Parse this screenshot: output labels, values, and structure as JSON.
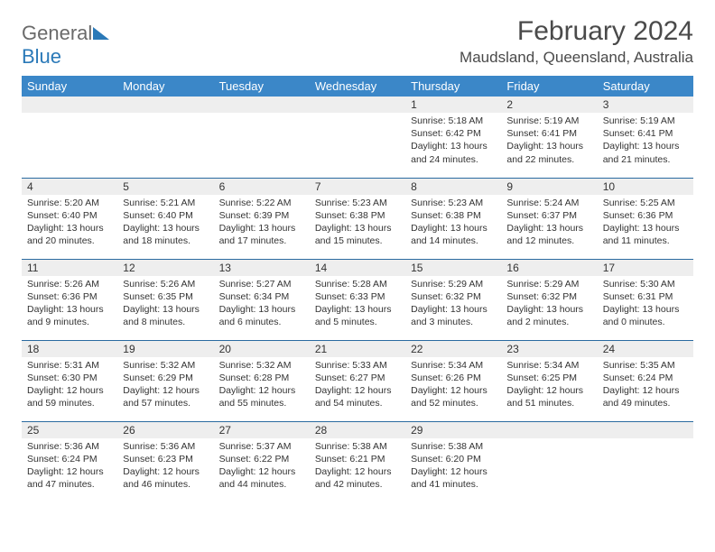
{
  "logo": {
    "text1": "General",
    "text2": "Blue"
  },
  "title": "February 2024",
  "location": "Maudsland, Queensland, Australia",
  "colors": {
    "header_bg": "#3b87c8",
    "row_divider": "#2a6aa0",
    "daynum_bg": "#eeeeee",
    "logo_gray": "#6a6a6a",
    "logo_blue": "#2a79b8"
  },
  "day_headers": [
    "Sunday",
    "Monday",
    "Tuesday",
    "Wednesday",
    "Thursday",
    "Friday",
    "Saturday"
  ],
  "weeks": [
    [
      {
        "day": "",
        "sunrise": "",
        "sunset": "",
        "daylight": ""
      },
      {
        "day": "",
        "sunrise": "",
        "sunset": "",
        "daylight": ""
      },
      {
        "day": "",
        "sunrise": "",
        "sunset": "",
        "daylight": ""
      },
      {
        "day": "",
        "sunrise": "",
        "sunset": "",
        "daylight": ""
      },
      {
        "day": "1",
        "sunrise": "Sunrise: 5:18 AM",
        "sunset": "Sunset: 6:42 PM",
        "daylight": "Daylight: 13 hours and 24 minutes."
      },
      {
        "day": "2",
        "sunrise": "Sunrise: 5:19 AM",
        "sunset": "Sunset: 6:41 PM",
        "daylight": "Daylight: 13 hours and 22 minutes."
      },
      {
        "day": "3",
        "sunrise": "Sunrise: 5:19 AM",
        "sunset": "Sunset: 6:41 PM",
        "daylight": "Daylight: 13 hours and 21 minutes."
      }
    ],
    [
      {
        "day": "4",
        "sunrise": "Sunrise: 5:20 AM",
        "sunset": "Sunset: 6:40 PM",
        "daylight": "Daylight: 13 hours and 20 minutes."
      },
      {
        "day": "5",
        "sunrise": "Sunrise: 5:21 AM",
        "sunset": "Sunset: 6:40 PM",
        "daylight": "Daylight: 13 hours and 18 minutes."
      },
      {
        "day": "6",
        "sunrise": "Sunrise: 5:22 AM",
        "sunset": "Sunset: 6:39 PM",
        "daylight": "Daylight: 13 hours and 17 minutes."
      },
      {
        "day": "7",
        "sunrise": "Sunrise: 5:23 AM",
        "sunset": "Sunset: 6:38 PM",
        "daylight": "Daylight: 13 hours and 15 minutes."
      },
      {
        "day": "8",
        "sunrise": "Sunrise: 5:23 AM",
        "sunset": "Sunset: 6:38 PM",
        "daylight": "Daylight: 13 hours and 14 minutes."
      },
      {
        "day": "9",
        "sunrise": "Sunrise: 5:24 AM",
        "sunset": "Sunset: 6:37 PM",
        "daylight": "Daylight: 13 hours and 12 minutes."
      },
      {
        "day": "10",
        "sunrise": "Sunrise: 5:25 AM",
        "sunset": "Sunset: 6:36 PM",
        "daylight": "Daylight: 13 hours and 11 minutes."
      }
    ],
    [
      {
        "day": "11",
        "sunrise": "Sunrise: 5:26 AM",
        "sunset": "Sunset: 6:36 PM",
        "daylight": "Daylight: 13 hours and 9 minutes."
      },
      {
        "day": "12",
        "sunrise": "Sunrise: 5:26 AM",
        "sunset": "Sunset: 6:35 PM",
        "daylight": "Daylight: 13 hours and 8 minutes."
      },
      {
        "day": "13",
        "sunrise": "Sunrise: 5:27 AM",
        "sunset": "Sunset: 6:34 PM",
        "daylight": "Daylight: 13 hours and 6 minutes."
      },
      {
        "day": "14",
        "sunrise": "Sunrise: 5:28 AM",
        "sunset": "Sunset: 6:33 PM",
        "daylight": "Daylight: 13 hours and 5 minutes."
      },
      {
        "day": "15",
        "sunrise": "Sunrise: 5:29 AM",
        "sunset": "Sunset: 6:32 PM",
        "daylight": "Daylight: 13 hours and 3 minutes."
      },
      {
        "day": "16",
        "sunrise": "Sunrise: 5:29 AM",
        "sunset": "Sunset: 6:32 PM",
        "daylight": "Daylight: 13 hours and 2 minutes."
      },
      {
        "day": "17",
        "sunrise": "Sunrise: 5:30 AM",
        "sunset": "Sunset: 6:31 PM",
        "daylight": "Daylight: 13 hours and 0 minutes."
      }
    ],
    [
      {
        "day": "18",
        "sunrise": "Sunrise: 5:31 AM",
        "sunset": "Sunset: 6:30 PM",
        "daylight": "Daylight: 12 hours and 59 minutes."
      },
      {
        "day": "19",
        "sunrise": "Sunrise: 5:32 AM",
        "sunset": "Sunset: 6:29 PM",
        "daylight": "Daylight: 12 hours and 57 minutes."
      },
      {
        "day": "20",
        "sunrise": "Sunrise: 5:32 AM",
        "sunset": "Sunset: 6:28 PM",
        "daylight": "Daylight: 12 hours and 55 minutes."
      },
      {
        "day": "21",
        "sunrise": "Sunrise: 5:33 AM",
        "sunset": "Sunset: 6:27 PM",
        "daylight": "Daylight: 12 hours and 54 minutes."
      },
      {
        "day": "22",
        "sunrise": "Sunrise: 5:34 AM",
        "sunset": "Sunset: 6:26 PM",
        "daylight": "Daylight: 12 hours and 52 minutes."
      },
      {
        "day": "23",
        "sunrise": "Sunrise: 5:34 AM",
        "sunset": "Sunset: 6:25 PM",
        "daylight": "Daylight: 12 hours and 51 minutes."
      },
      {
        "day": "24",
        "sunrise": "Sunrise: 5:35 AM",
        "sunset": "Sunset: 6:24 PM",
        "daylight": "Daylight: 12 hours and 49 minutes."
      }
    ],
    [
      {
        "day": "25",
        "sunrise": "Sunrise: 5:36 AM",
        "sunset": "Sunset: 6:24 PM",
        "daylight": "Daylight: 12 hours and 47 minutes."
      },
      {
        "day": "26",
        "sunrise": "Sunrise: 5:36 AM",
        "sunset": "Sunset: 6:23 PM",
        "daylight": "Daylight: 12 hours and 46 minutes."
      },
      {
        "day": "27",
        "sunrise": "Sunrise: 5:37 AM",
        "sunset": "Sunset: 6:22 PM",
        "daylight": "Daylight: 12 hours and 44 minutes."
      },
      {
        "day": "28",
        "sunrise": "Sunrise: 5:38 AM",
        "sunset": "Sunset: 6:21 PM",
        "daylight": "Daylight: 12 hours and 42 minutes."
      },
      {
        "day": "29",
        "sunrise": "Sunrise: 5:38 AM",
        "sunset": "Sunset: 6:20 PM",
        "daylight": "Daylight: 12 hours and 41 minutes."
      },
      {
        "day": "",
        "sunrise": "",
        "sunset": "",
        "daylight": ""
      },
      {
        "day": "",
        "sunrise": "",
        "sunset": "",
        "daylight": ""
      }
    ]
  ]
}
